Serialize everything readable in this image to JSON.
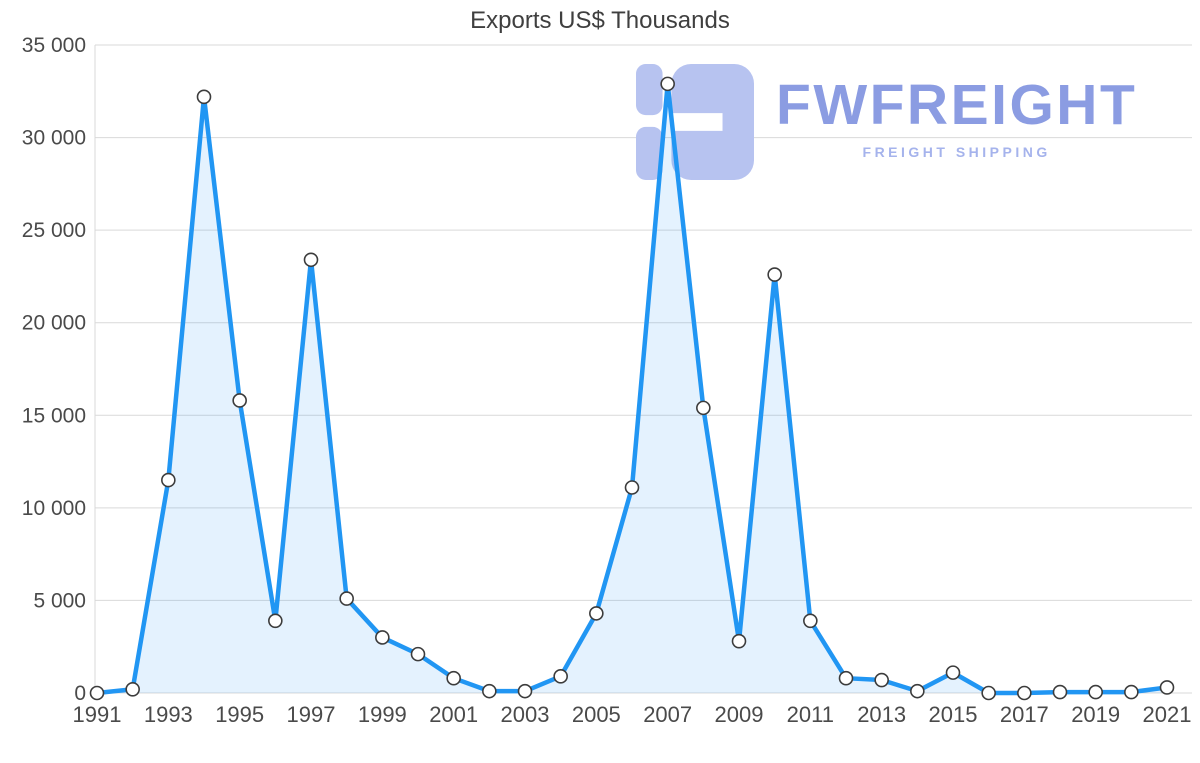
{
  "chart_data": {
    "type": "area",
    "title": "Exports US$ Thousands",
    "xlabel": "",
    "ylabel": "",
    "x": [
      1991,
      1992,
      1993,
      1994,
      1995,
      1996,
      1997,
      1998,
      1999,
      2000,
      2001,
      2002,
      2003,
      2004,
      2005,
      2006,
      2007,
      2008,
      2009,
      2010,
      2011,
      2012,
      2013,
      2014,
      2015,
      2016,
      2017,
      2018,
      2019,
      2020,
      2021
    ],
    "values": [
      0,
      200,
      11500,
      32200,
      15800,
      3900,
      23400,
      5100,
      3000,
      2100,
      800,
      100,
      100,
      900,
      4300,
      11100,
      32900,
      15400,
      2800,
      22600,
      3900,
      800,
      700,
      100,
      1100,
      0,
      0,
      50,
      50,
      50,
      300
    ],
    "ylim": [
      0,
      35000
    ],
    "ytick_step": 5000,
    "ytick_labels": [
      "0",
      "5 000",
      "10 000",
      "15 000",
      "20 000",
      "25 000",
      "30 000",
      "35 000"
    ],
    "xtick_labels": [
      "1991",
      "1993",
      "1995",
      "1997",
      "1999",
      "2001",
      "2003",
      "2005",
      "2007",
      "2009",
      "2011",
      "2013",
      "2015",
      "2017",
      "2019",
      "2021"
    ],
    "grid": true,
    "legend": "none",
    "marker_radius": 6.5,
    "colors": {
      "line": "#2196f3",
      "fill": "rgba(33,150,243,0.12)",
      "marker_fill": "#ffffff",
      "marker_stroke": "#3c3c3c",
      "grid": "#d9d9d9",
      "axis_text": "#4a4a4a",
      "title_text": "#3f3f3f"
    }
  },
  "watermark": {
    "brand": "FWFREIGHT",
    "subtitle": "FREIGHT SHIPPING",
    "brand_color": "#8b9ce2",
    "subtitle_color": "#a5b3ec",
    "logo_color": "#b7c3f0"
  }
}
